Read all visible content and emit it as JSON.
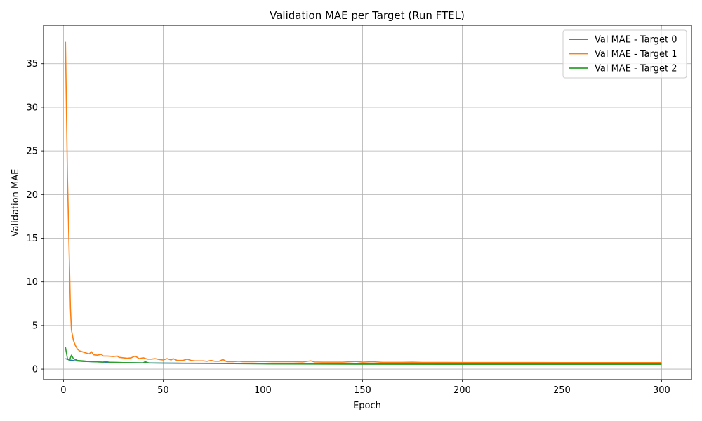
{
  "chart_data": {
    "type": "line",
    "title": "Validation MAE per Target (Run FTEL)",
    "xlabel": "Epoch",
    "ylabel": "Validation MAE",
    "xlim": [
      -10,
      315
    ],
    "ylim": [
      -1.2,
      39.4
    ],
    "xticks": [
      0,
      50,
      100,
      150,
      200,
      250,
      300
    ],
    "yticks": [
      0,
      5,
      10,
      15,
      20,
      25,
      30,
      35
    ],
    "grid": true,
    "legend_position": "upper-right",
    "series": [
      {
        "name": "Val MAE - Target 0",
        "color": "#1f77b4",
        "points": [
          [
            1,
            1.2
          ],
          [
            3,
            1.05
          ],
          [
            6,
            0.95
          ],
          [
            10,
            0.88
          ],
          [
            15,
            0.85
          ],
          [
            20,
            0.8
          ],
          [
            30,
            0.75
          ],
          [
            40,
            0.72
          ],
          [
            50,
            0.7
          ],
          [
            60,
            0.68
          ],
          [
            80,
            0.66
          ],
          [
            100,
            0.64
          ],
          [
            120,
            0.63
          ],
          [
            150,
            0.62
          ],
          [
            200,
            0.6
          ],
          [
            250,
            0.6
          ],
          [
            300,
            0.6
          ]
        ]
      },
      {
        "name": "Val MAE - Target 1",
        "color": "#ff7f0e",
        "points": [
          [
            1,
            37.5
          ],
          [
            2,
            22
          ],
          [
            3,
            12
          ],
          [
            3.5,
            7
          ],
          [
            4,
            4.5
          ],
          [
            5,
            3.3
          ],
          [
            6,
            2.7
          ],
          [
            7,
            2.3
          ],
          [
            8,
            2.1
          ],
          [
            10,
            1.95
          ],
          [
            12,
            1.8
          ],
          [
            13,
            1.75
          ],
          [
            14,
            2.0
          ],
          [
            15,
            1.65
          ],
          [
            17,
            1.6
          ],
          [
            19,
            1.7
          ],
          [
            20,
            1.5
          ],
          [
            22,
            1.5
          ],
          [
            25,
            1.45
          ],
          [
            27,
            1.5
          ],
          [
            28,
            1.35
          ],
          [
            30,
            1.3
          ],
          [
            32,
            1.25
          ],
          [
            34,
            1.3
          ],
          [
            36,
            1.5
          ],
          [
            38,
            1.2
          ],
          [
            40,
            1.3
          ],
          [
            42,
            1.15
          ],
          [
            44,
            1.15
          ],
          [
            46,
            1.2
          ],
          [
            48,
            1.1
          ],
          [
            50,
            1.05
          ],
          [
            52,
            1.2
          ],
          [
            54,
            1.05
          ],
          [
            55,
            1.2
          ],
          [
            57,
            1.0
          ],
          [
            60,
            1.0
          ],
          [
            62,
            1.15
          ],
          [
            64,
            1.0
          ],
          [
            66,
            0.95
          ],
          [
            70,
            0.95
          ],
          [
            72,
            0.9
          ],
          [
            74,
            1.0
          ],
          [
            76,
            0.9
          ],
          [
            78,
            0.9
          ],
          [
            80,
            1.1
          ],
          [
            82,
            0.85
          ],
          [
            85,
            0.85
          ],
          [
            88,
            0.9
          ],
          [
            90,
            0.85
          ],
          [
            95,
            0.85
          ],
          [
            100,
            0.88
          ],
          [
            105,
            0.85
          ],
          [
            110,
            0.85
          ],
          [
            115,
            0.85
          ],
          [
            120,
            0.82
          ],
          [
            124,
            0.95
          ],
          [
            126,
            0.82
          ],
          [
            130,
            0.8
          ],
          [
            140,
            0.8
          ],
          [
            147,
            0.88
          ],
          [
            150,
            0.8
          ],
          [
            155,
            0.85
          ],
          [
            160,
            0.78
          ],
          [
            170,
            0.78
          ],
          [
            175,
            0.8
          ],
          [
            180,
            0.77
          ],
          [
            200,
            0.76
          ],
          [
            250,
            0.75
          ],
          [
            300,
            0.75
          ]
        ]
      },
      {
        "name": "Val MAE - Target 2",
        "color": "#2ca02c",
        "points": [
          [
            1,
            2.5
          ],
          [
            2,
            1.2
          ],
          [
            3,
            1.0
          ],
          [
            4,
            1.6
          ],
          [
            5,
            1.2
          ],
          [
            7,
            1.0
          ],
          [
            10,
            0.95
          ],
          [
            14,
            0.85
          ],
          [
            20,
            0.8
          ],
          [
            21,
            0.9
          ],
          [
            23,
            0.78
          ],
          [
            30,
            0.75
          ],
          [
            40,
            0.72
          ],
          [
            41,
            0.85
          ],
          [
            43,
            0.7
          ],
          [
            50,
            0.68
          ],
          [
            60,
            0.66
          ],
          [
            80,
            0.64
          ],
          [
            100,
            0.6
          ],
          [
            120,
            0.58
          ],
          [
            150,
            0.56
          ],
          [
            200,
            0.55
          ],
          [
            250,
            0.55
          ],
          [
            300,
            0.55
          ]
        ]
      }
    ]
  }
}
